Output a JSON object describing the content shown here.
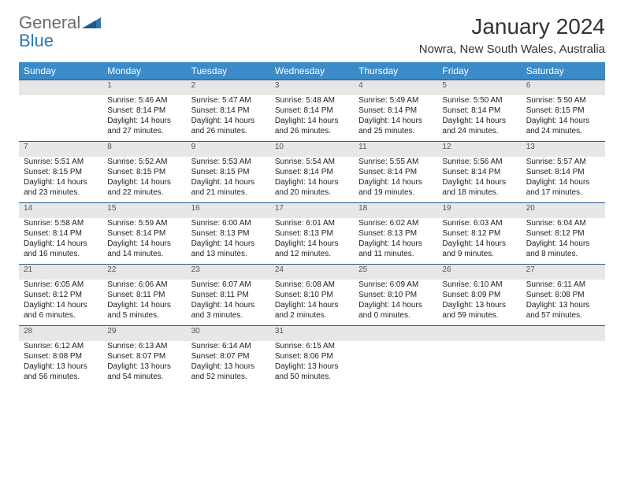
{
  "logo": {
    "word1": "General",
    "word2": "Blue"
  },
  "title": "January 2024",
  "location": "Nowra, New South Wales, Australia",
  "colors": {
    "header_bg": "#3b8bc9",
    "header_text": "#ffffff",
    "daynum_bg": "#e7e7e7",
    "daynum_text": "#555555",
    "row_border": "#2a5a85",
    "body_text": "#222222",
    "logo_gray": "#6a6a6a",
    "logo_blue": "#2a7ab8"
  },
  "daysOfWeek": [
    "Sunday",
    "Monday",
    "Tuesday",
    "Wednesday",
    "Thursday",
    "Friday",
    "Saturday"
  ],
  "weeks": [
    [
      null,
      {
        "n": "1",
        "sr": "Sunrise: 5:46 AM",
        "ss": "Sunset: 8:14 PM",
        "d1": "Daylight: 14 hours",
        "d2": "and 27 minutes."
      },
      {
        "n": "2",
        "sr": "Sunrise: 5:47 AM",
        "ss": "Sunset: 8:14 PM",
        "d1": "Daylight: 14 hours",
        "d2": "and 26 minutes."
      },
      {
        "n": "3",
        "sr": "Sunrise: 5:48 AM",
        "ss": "Sunset: 8:14 PM",
        "d1": "Daylight: 14 hours",
        "d2": "and 26 minutes."
      },
      {
        "n": "4",
        "sr": "Sunrise: 5:49 AM",
        "ss": "Sunset: 8:14 PM",
        "d1": "Daylight: 14 hours",
        "d2": "and 25 minutes."
      },
      {
        "n": "5",
        "sr": "Sunrise: 5:50 AM",
        "ss": "Sunset: 8:14 PM",
        "d1": "Daylight: 14 hours",
        "d2": "and 24 minutes."
      },
      {
        "n": "6",
        "sr": "Sunrise: 5:50 AM",
        "ss": "Sunset: 8:15 PM",
        "d1": "Daylight: 14 hours",
        "d2": "and 24 minutes."
      }
    ],
    [
      {
        "n": "7",
        "sr": "Sunrise: 5:51 AM",
        "ss": "Sunset: 8:15 PM",
        "d1": "Daylight: 14 hours",
        "d2": "and 23 minutes."
      },
      {
        "n": "8",
        "sr": "Sunrise: 5:52 AM",
        "ss": "Sunset: 8:15 PM",
        "d1": "Daylight: 14 hours",
        "d2": "and 22 minutes."
      },
      {
        "n": "9",
        "sr": "Sunrise: 5:53 AM",
        "ss": "Sunset: 8:15 PM",
        "d1": "Daylight: 14 hours",
        "d2": "and 21 minutes."
      },
      {
        "n": "10",
        "sr": "Sunrise: 5:54 AM",
        "ss": "Sunset: 8:14 PM",
        "d1": "Daylight: 14 hours",
        "d2": "and 20 minutes."
      },
      {
        "n": "11",
        "sr": "Sunrise: 5:55 AM",
        "ss": "Sunset: 8:14 PM",
        "d1": "Daylight: 14 hours",
        "d2": "and 19 minutes."
      },
      {
        "n": "12",
        "sr": "Sunrise: 5:56 AM",
        "ss": "Sunset: 8:14 PM",
        "d1": "Daylight: 14 hours",
        "d2": "and 18 minutes."
      },
      {
        "n": "13",
        "sr": "Sunrise: 5:57 AM",
        "ss": "Sunset: 8:14 PM",
        "d1": "Daylight: 14 hours",
        "d2": "and 17 minutes."
      }
    ],
    [
      {
        "n": "14",
        "sr": "Sunrise: 5:58 AM",
        "ss": "Sunset: 8:14 PM",
        "d1": "Daylight: 14 hours",
        "d2": "and 16 minutes."
      },
      {
        "n": "15",
        "sr": "Sunrise: 5:59 AM",
        "ss": "Sunset: 8:14 PM",
        "d1": "Daylight: 14 hours",
        "d2": "and 14 minutes."
      },
      {
        "n": "16",
        "sr": "Sunrise: 6:00 AM",
        "ss": "Sunset: 8:13 PM",
        "d1": "Daylight: 14 hours",
        "d2": "and 13 minutes."
      },
      {
        "n": "17",
        "sr": "Sunrise: 6:01 AM",
        "ss": "Sunset: 8:13 PM",
        "d1": "Daylight: 14 hours",
        "d2": "and 12 minutes."
      },
      {
        "n": "18",
        "sr": "Sunrise: 6:02 AM",
        "ss": "Sunset: 8:13 PM",
        "d1": "Daylight: 14 hours",
        "d2": "and 11 minutes."
      },
      {
        "n": "19",
        "sr": "Sunrise: 6:03 AM",
        "ss": "Sunset: 8:12 PM",
        "d1": "Daylight: 14 hours",
        "d2": "and 9 minutes."
      },
      {
        "n": "20",
        "sr": "Sunrise: 6:04 AM",
        "ss": "Sunset: 8:12 PM",
        "d1": "Daylight: 14 hours",
        "d2": "and 8 minutes."
      }
    ],
    [
      {
        "n": "21",
        "sr": "Sunrise: 6:05 AM",
        "ss": "Sunset: 8:12 PM",
        "d1": "Daylight: 14 hours",
        "d2": "and 6 minutes."
      },
      {
        "n": "22",
        "sr": "Sunrise: 6:06 AM",
        "ss": "Sunset: 8:11 PM",
        "d1": "Daylight: 14 hours",
        "d2": "and 5 minutes."
      },
      {
        "n": "23",
        "sr": "Sunrise: 6:07 AM",
        "ss": "Sunset: 8:11 PM",
        "d1": "Daylight: 14 hours",
        "d2": "and 3 minutes."
      },
      {
        "n": "24",
        "sr": "Sunrise: 6:08 AM",
        "ss": "Sunset: 8:10 PM",
        "d1": "Daylight: 14 hours",
        "d2": "and 2 minutes."
      },
      {
        "n": "25",
        "sr": "Sunrise: 6:09 AM",
        "ss": "Sunset: 8:10 PM",
        "d1": "Daylight: 14 hours",
        "d2": "and 0 minutes."
      },
      {
        "n": "26",
        "sr": "Sunrise: 6:10 AM",
        "ss": "Sunset: 8:09 PM",
        "d1": "Daylight: 13 hours",
        "d2": "and 59 minutes."
      },
      {
        "n": "27",
        "sr": "Sunrise: 6:11 AM",
        "ss": "Sunset: 8:08 PM",
        "d1": "Daylight: 13 hours",
        "d2": "and 57 minutes."
      }
    ],
    [
      {
        "n": "28",
        "sr": "Sunrise: 6:12 AM",
        "ss": "Sunset: 8:08 PM",
        "d1": "Daylight: 13 hours",
        "d2": "and 56 minutes."
      },
      {
        "n": "29",
        "sr": "Sunrise: 6:13 AM",
        "ss": "Sunset: 8:07 PM",
        "d1": "Daylight: 13 hours",
        "d2": "and 54 minutes."
      },
      {
        "n": "30",
        "sr": "Sunrise: 6:14 AM",
        "ss": "Sunset: 8:07 PM",
        "d1": "Daylight: 13 hours",
        "d2": "and 52 minutes."
      },
      {
        "n": "31",
        "sr": "Sunrise: 6:15 AM",
        "ss": "Sunset: 8:06 PM",
        "d1": "Daylight: 13 hours",
        "d2": "and 50 minutes."
      },
      null,
      null,
      null
    ]
  ]
}
